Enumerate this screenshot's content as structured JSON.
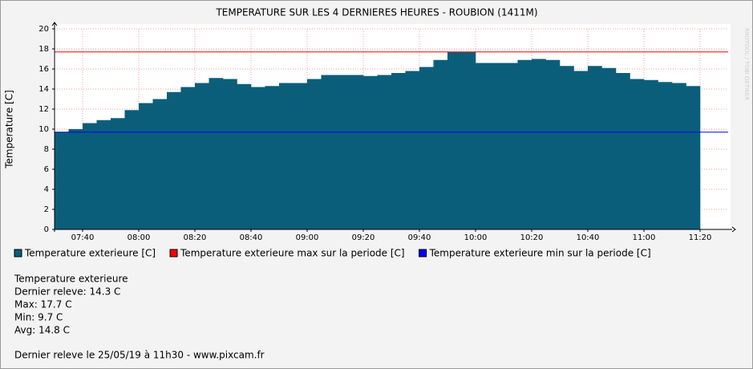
{
  "chart_data": {
    "type": "step-area",
    "title": "TEMPERATURE SUR LES 4 DERNIERES HEURES - ROUBION (1411M)",
    "ylabel": "Temperature [C]",
    "watermark": "RRDTOOL / TOBI OETIKER",
    "x": [
      "07:30",
      "07:35",
      "07:40",
      "07:45",
      "07:50",
      "07:55",
      "08:00",
      "08:05",
      "08:10",
      "08:15",
      "08:20",
      "08:25",
      "08:30",
      "08:35",
      "08:40",
      "08:45",
      "08:50",
      "08:55",
      "09:00",
      "09:05",
      "09:10",
      "09:15",
      "09:20",
      "09:25",
      "09:30",
      "09:35",
      "09:40",
      "09:45",
      "09:50",
      "09:55",
      "10:00",
      "10:05",
      "10:10",
      "10:15",
      "10:20",
      "10:25",
      "10:30",
      "10:35",
      "10:40",
      "10:45",
      "10:50",
      "10:55",
      "11:00",
      "11:05",
      "11:10",
      "11:15"
    ],
    "series": [
      {
        "name": "Temperature exterieure [C]",
        "color": "#0b5e7a",
        "values": [
          9.7,
          10.0,
          10.6,
          10.9,
          11.1,
          11.9,
          12.6,
          13.0,
          13.7,
          14.2,
          14.6,
          15.1,
          15.0,
          14.5,
          14.2,
          14.3,
          14.6,
          14.6,
          15.0,
          15.4,
          15.4,
          15.4,
          15.3,
          15.4,
          15.6,
          15.8,
          16.2,
          16.9,
          17.7,
          17.7,
          16.6,
          16.6,
          16.6,
          16.9,
          17.0,
          16.9,
          16.3,
          15.8,
          16.3,
          16.1,
          15.6,
          15.0,
          14.9,
          14.7,
          14.6,
          14.3
        ]
      }
    ],
    "reference_lines": [
      {
        "name": "Temperature exterieure max sur la periode [C]",
        "color": "#ff0000",
        "value": 17.7
      },
      {
        "name": "Temperature exterieure min sur la periode [C]",
        "color": "#0000ff",
        "value": 9.7
      }
    ],
    "xlim": [
      "07:30",
      "11:30"
    ],
    "xticks": [
      "07:40",
      "08:00",
      "08:20",
      "08:40",
      "09:00",
      "09:20",
      "09:40",
      "10:00",
      "10:20",
      "10:40",
      "11:00",
      "11:20"
    ],
    "ylim": [
      0,
      20
    ],
    "yticks": [
      0,
      2,
      4,
      6,
      8,
      10,
      12,
      14,
      16,
      18,
      20
    ],
    "grid": true,
    "stats": [
      "Temperature exterieure",
      "Dernier releve: 14.3 C",
      "Max: 17.7 C",
      "Min: 9.7 C",
      "Avg: 14.8 C"
    ],
    "footer": "Dernier releve le 25/05/19 à 11h30 - www.pixcam.fr"
  }
}
